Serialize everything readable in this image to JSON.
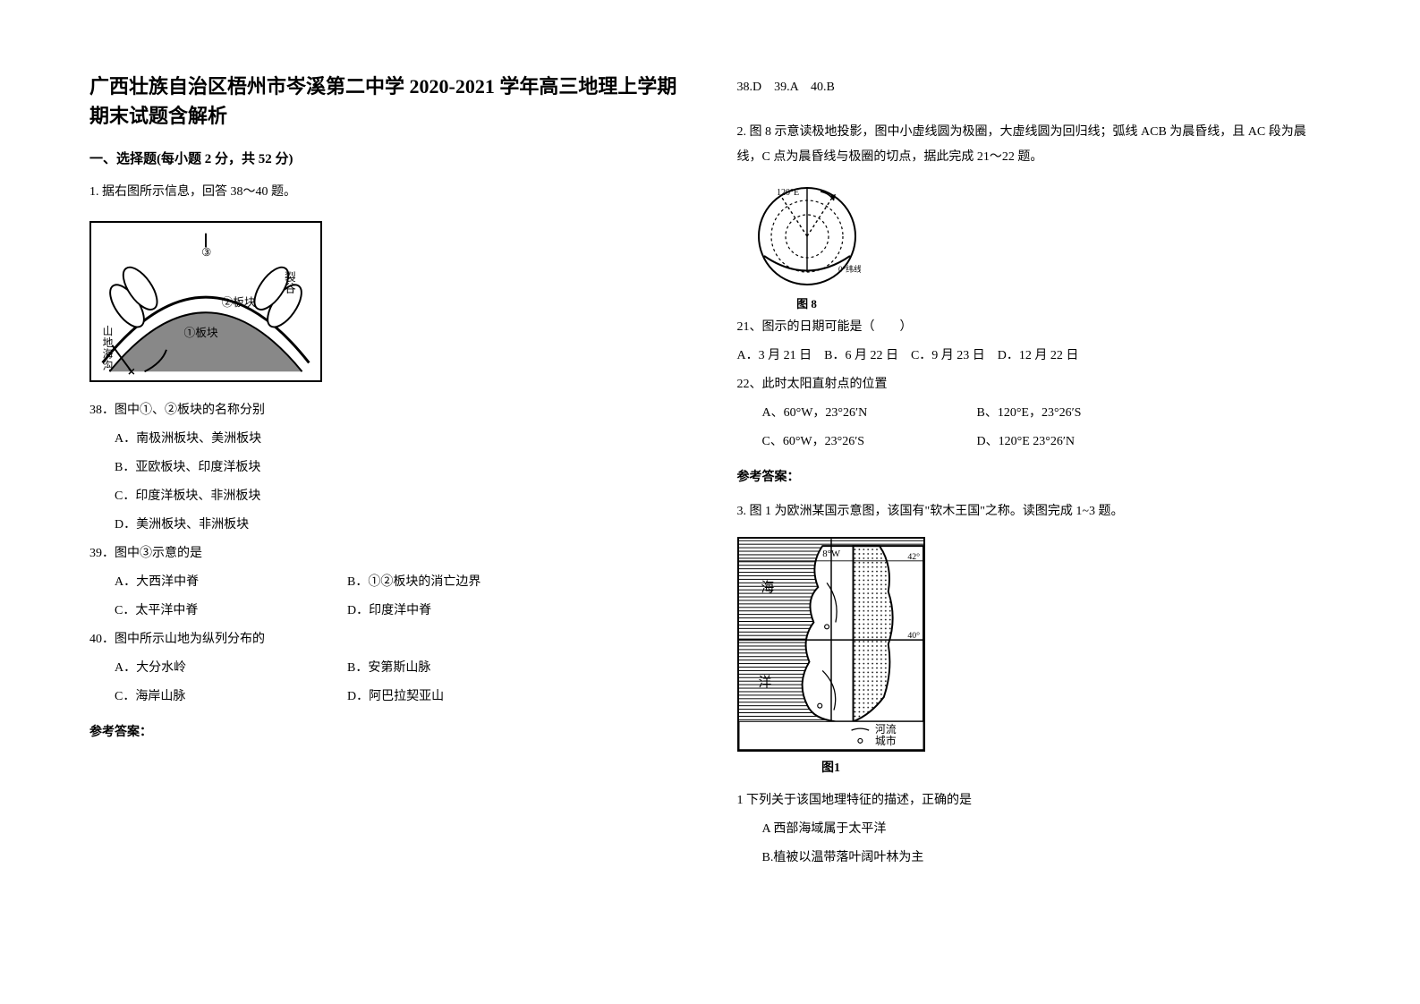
{
  "title": "广西壮族自治区梧州市岑溪第二中学 2020-2021 学年高三地理上学期期末试题含解析",
  "section1_head": "一、选择题(每小题 2 分，共 52 分)",
  "q1": {
    "stem": "1. 据右图所示信息，回答 38～40 题。",
    "fig_labels": {
      "n3": "③",
      "n2": "②板块",
      "n1": "①板块",
      "left": "山地海沟",
      "rift": "裂谷"
    },
    "q38": {
      "stem": "38．图中①、②板块的名称分别",
      "a": "A．南极洲板块、美洲板块",
      "b": "B．亚欧板块、印度洋板块",
      "c": "C．印度洋板块、非洲板块",
      "d": "D．美洲板块、非洲板块"
    },
    "q39": {
      "stem": "39．图中③示意的是",
      "a": "A．大西洋中脊",
      "b": "B．①②板块的消亡边界",
      "c": "C．太平洋中脊",
      "d": "D．印度洋中脊"
    },
    "q40": {
      "stem": "40．图中所示山地为纵列分布的",
      "a": "A．大分水岭",
      "b": "B．安第斯山脉",
      "c": "C．海岸山脉",
      "d": "D．阿巴拉契亚山"
    },
    "answer_label": "参考答案：",
    "answer": "38.D　39.A　40.B"
  },
  "q2": {
    "stem": "2. 图 8 示意读极地投影，图中小虚线圆为极圈，大虚线圆为回归线；弧线 ACB 为晨昏线，且 AC 段为晨线，C 点为晨昏线与极圈的切点，据此完成 21～22 题。",
    "fig_labels": {
      "lon": "120°E",
      "eq": "0°纬线",
      "cap": "图 8"
    },
    "q21": {
      "stem": "21、图示的日期可能是（　　）",
      "opts": "A．3 月 21 日　B．6 月 22 日　C．9 月 23 日　D．12 月 22 日"
    },
    "q22": {
      "stem": "22、此时太阳直射点的位置",
      "a": "A、60°W，23°26′N",
      "b": "B、120°E，23°26′S",
      "c": "C、60°W，23°26′S",
      "d": "D、120°E 23°26′N"
    },
    "answer_label": "参考答案："
  },
  "q3": {
    "stem": "3. 图 1 为欧洲某国示意图，该国有\"软木王国\"之称。读图完成 1~3 题。",
    "fig_labels": {
      "sea": "海",
      "ocean": "洋",
      "leg_river": "河流",
      "leg_city": "城市",
      "coord8": "8°W",
      "coord40": "40°",
      "coord42": "42°",
      "cap": "图1"
    },
    "q1s": {
      "stem": "1 下列关于该国地理特征的描述，正确的是",
      "a": "A 西部海域属于太平洋",
      "b": "B.植被以温带落叶阔叶林为主"
    }
  },
  "colors": {
    "text": "#000000",
    "bg": "#ffffff",
    "stroke": "#000000",
    "fill_globe": "#888888"
  }
}
